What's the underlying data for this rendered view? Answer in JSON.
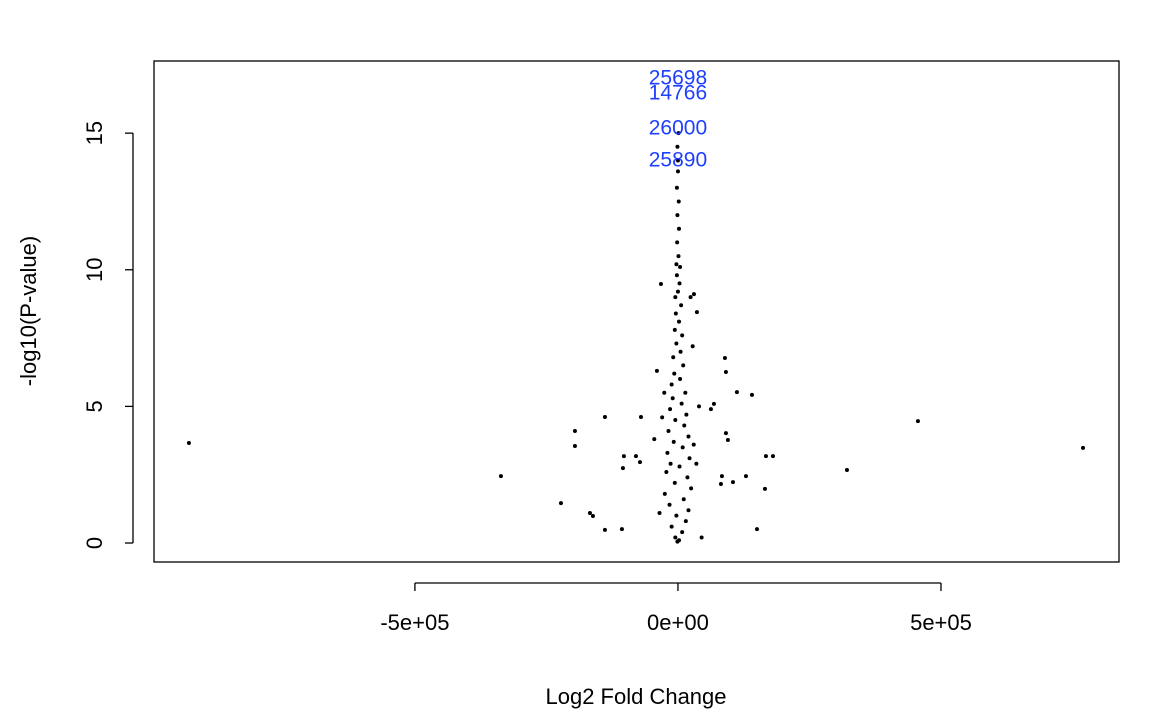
{
  "chart_data": {
    "type": "scatter",
    "x_label": "Log2 Fold Change",
    "y_label": "-log10(P-value)",
    "color": "#000000",
    "annotation_color": "#1f3fff",
    "xlim": [
      -996000,
      838400
    ],
    "ylim": [
      -0.695,
      17.64
    ],
    "xticks": [
      {
        "value": -500000,
        "label": "-5e+05"
      },
      {
        "value": 0,
        "label": "0e+00"
      },
      {
        "value": 500000,
        "label": "5e+05"
      }
    ],
    "yticks": [
      0,
      5,
      10,
      15
    ],
    "annotations": [
      {
        "text": "25698",
        "x": 0,
        "y": 16.98
      },
      {
        "text": "14766",
        "x": 0,
        "y": 16.43
      },
      {
        "text": "26000",
        "x": 0,
        "y": 15.15
      },
      {
        "text": "25890",
        "x": 0,
        "y": 13.98
      }
    ],
    "x": [
      -929600,
      -336500,
      -222400,
      -195800,
      -195800,
      -167300,
      -161600,
      -138800,
      -138800,
      -106500,
      -102700,
      -104600,
      -79800,
      -72200,
      -70300,
      180600,
      167300,
      140700,
      112100,
      150200,
      165400,
      321300,
      456200,
      770000,
      89300,
      91200,
      36100,
      30400,
      -32300,
      83600,
      104600,
      81700,
      129300,
      62700,
      68400,
      91200,
      95000,
      0,
      -2000,
      1500,
      -1000,
      2000,
      -1500,
      1000,
      -3000,
      4000,
      -2000,
      3000,
      0,
      -5000,
      6000,
      -4000,
      2000,
      -6000,
      8000,
      -3000,
      5000,
      -9000,
      10000,
      -7000,
      4000,
      -12000,
      14000,
      -10000,
      7000,
      -15000,
      16000,
      -5000,
      12000,
      -18000,
      20000,
      -8000,
      9000,
      -20000,
      22000,
      -14000,
      3000,
      -22000,
      18000,
      -6000,
      25000,
      -25000,
      11000,
      -16000,
      20000,
      -3000,
      15000,
      -12000,
      8000,
      -5000,
      2000,
      -1000,
      30000,
      -30000,
      35000,
      -35000,
      40000,
      -40000,
      28000,
      -26000,
      45000,
      -45000,
      24000,
      -1000,
      1000,
      0
    ],
    "y": [
      3.66,
      2.45,
      1.46,
      4.1,
      3.55,
      1.1,
      0.99,
      4.61,
      0.48,
      0.51,
      3.18,
      2.74,
      3.18,
      2.96,
      4.61,
      3.18,
      3.18,
      5.42,
      5.52,
      0.51,
      1.98,
      2.67,
      4.46,
      3.48,
      6.77,
      6.26,
      8.45,
      9.11,
      9.48,
      2.45,
      2.23,
      2.16,
      2.45,
      4.9,
      5.09,
      4.02,
      3.77,
      13.6,
      13,
      12.5,
      12,
      11.5,
      11,
      10.5,
      10.2,
      10.1,
      9.8,
      9.5,
      9.2,
      9,
      8.7,
      8.4,
      8.1,
      7.8,
      7.6,
      7.3,
      7.0,
      6.8,
      6.5,
      6.2,
      6.0,
      5.8,
      5.5,
      5.3,
      5.1,
      4.9,
      4.7,
      4.5,
      4.3,
      4.1,
      3.9,
      3.7,
      3.5,
      3.3,
      3.1,
      2.9,
      2.8,
      2.6,
      2.4,
      2.2,
      2.0,
      1.8,
      1.6,
      1.4,
      1.2,
      1.0,
      0.8,
      0.6,
      0.4,
      0.2,
      0.1,
      0.05,
      3.6,
      4.6,
      2.9,
      1.1,
      5.0,
      6.3,
      7.2,
      5.5,
      0.2,
      3.8,
      9.0,
      14.5,
      15.0,
      14.0
    ]
  }
}
